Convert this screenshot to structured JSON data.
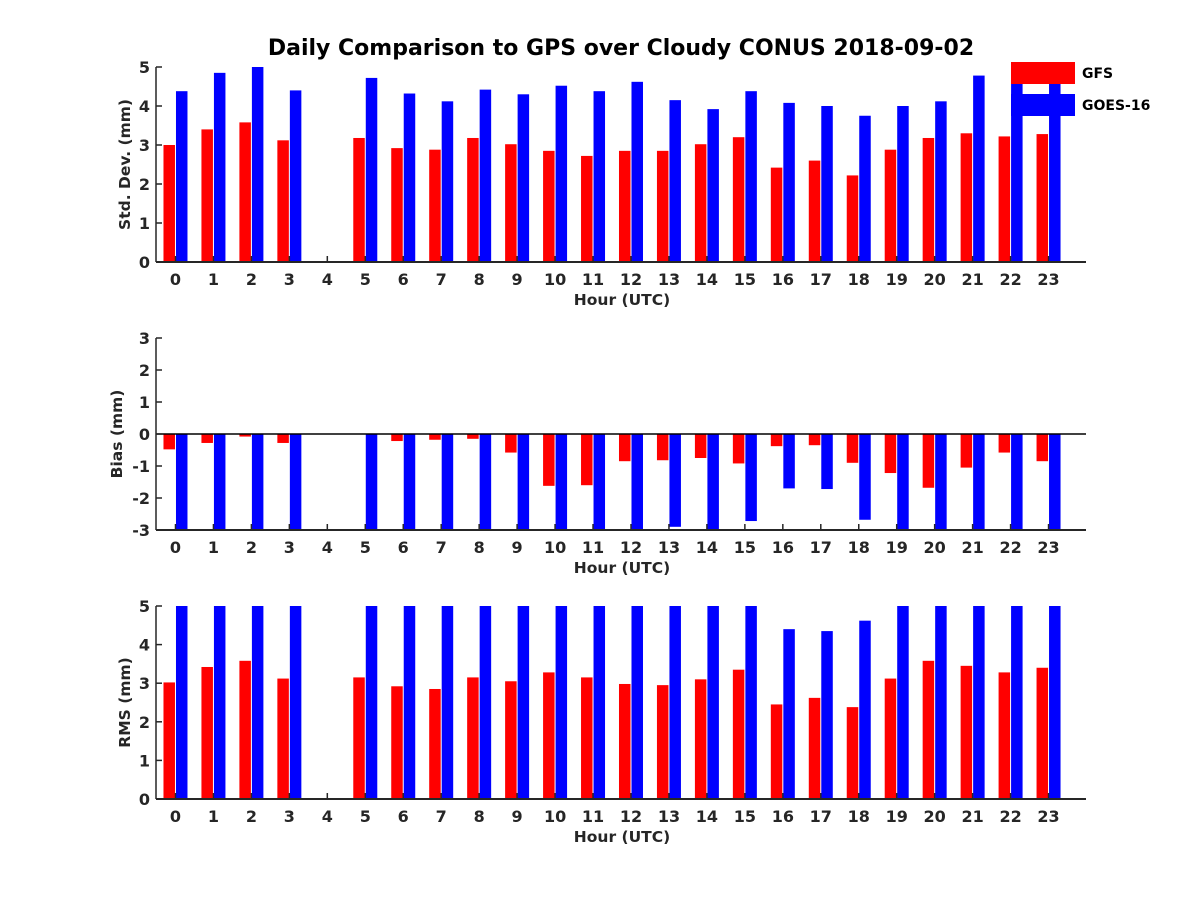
{
  "chart_data": {
    "title": "Daily Comparison to GPS over Cloudy CONUS 2018-09-02",
    "legend": {
      "placement": "top-right",
      "entries": [
        {
          "name": "GFS",
          "color": "#ff0000"
        },
        {
          "name": "GOES-16",
          "color": "#0000ff"
        }
      ]
    },
    "charts": [
      {
        "type": "bar",
        "xlabel": "Hour (UTC)",
        "ylabel": "Std. Dev. (mm)",
        "ylim": [
          0,
          5
        ],
        "yticks": [
          0,
          1,
          2,
          3,
          4,
          5
        ],
        "categories": [
          "0",
          "1",
          "2",
          "3",
          "4",
          "5",
          "6",
          "7",
          "8",
          "9",
          "10",
          "11",
          "12",
          "13",
          "14",
          "15",
          "16",
          "17",
          "18",
          "19",
          "20",
          "21",
          "22",
          "23"
        ],
        "series": [
          {
            "name": "GFS",
            "color": "#ff0000",
            "values": [
              3.0,
              3.4,
              3.58,
              3.12,
              null,
              3.18,
              2.92,
              2.88,
              3.18,
              3.02,
              2.85,
              2.72,
              2.85,
              2.85,
              3.02,
              3.2,
              2.42,
              2.6,
              2.22,
              2.88,
              3.18,
              3.3,
              3.22,
              3.28
            ]
          },
          {
            "name": "GOES-16",
            "color": "#0000ff",
            "values": [
              4.38,
              4.85,
              5.0,
              4.4,
              null,
              4.72,
              4.32,
              4.12,
              4.42,
              4.3,
              4.52,
              4.38,
              4.62,
              4.15,
              3.92,
              4.38,
              4.08,
              4.0,
              3.75,
              4.0,
              4.12,
              4.78,
              4.95,
              4.75
            ]
          }
        ]
      },
      {
        "type": "bar",
        "xlabel": "Hour (UTC)",
        "ylabel": "Bias (mm)",
        "ylim": [
          -3,
          3
        ],
        "yticks": [
          -3,
          -2,
          -1,
          0,
          1,
          2,
          3
        ],
        "zero_line": true,
        "categories": [
          "0",
          "1",
          "2",
          "3",
          "4",
          "5",
          "6",
          "7",
          "8",
          "9",
          "10",
          "11",
          "12",
          "13",
          "14",
          "15",
          "16",
          "17",
          "18",
          "19",
          "20",
          "21",
          "22",
          "23"
        ],
        "series": [
          {
            "name": "GFS",
            "color": "#ff0000",
            "values": [
              -0.48,
              -0.28,
              -0.08,
              -0.28,
              null,
              0.0,
              -0.22,
              -0.18,
              -0.15,
              -0.58,
              -1.62,
              -1.6,
              -0.85,
              -0.82,
              -0.75,
              -0.92,
              -0.38,
              -0.35,
              -0.9,
              -1.22,
              -1.68,
              -1.05,
              -0.58,
              -0.85
            ]
          },
          {
            "name": "GOES-16",
            "color": "#0000ff",
            "values": [
              -3.0,
              -3.0,
              -3.0,
              -3.0,
              null,
              -3.0,
              -3.0,
              -3.0,
              -3.0,
              -3.0,
              -3.0,
              -3.0,
              -3.0,
              -2.9,
              -3.0,
              -2.72,
              -1.7,
              -1.72,
              -2.68,
              -3.0,
              -3.0,
              -3.0,
              -3.0,
              -3.0
            ]
          }
        ]
      },
      {
        "type": "bar",
        "xlabel": "Hour (UTC)",
        "ylabel": "RMS (mm)",
        "ylim": [
          0,
          5
        ],
        "yticks": [
          0,
          1,
          2,
          3,
          4,
          5
        ],
        "categories": [
          "0",
          "1",
          "2",
          "3",
          "4",
          "5",
          "6",
          "7",
          "8",
          "9",
          "10",
          "11",
          "12",
          "13",
          "14",
          "15",
          "16",
          "17",
          "18",
          "19",
          "20",
          "21",
          "22",
          "23"
        ],
        "series": [
          {
            "name": "GFS",
            "color": "#ff0000",
            "values": [
              3.02,
              3.42,
              3.58,
              3.12,
              null,
              3.15,
              2.92,
              2.85,
              3.15,
              3.05,
              3.28,
              3.15,
              2.98,
              2.95,
              3.1,
              3.35,
              2.45,
              2.62,
              2.38,
              3.12,
              3.58,
              3.45,
              3.28,
              3.4
            ]
          },
          {
            "name": "GOES-16",
            "color": "#0000ff",
            "values": [
              5.0,
              5.0,
              5.0,
              5.0,
              null,
              5.0,
              5.0,
              5.0,
              5.0,
              5.0,
              5.0,
              5.0,
              5.0,
              5.0,
              5.0,
              5.0,
              4.4,
              4.35,
              4.62,
              5.0,
              5.0,
              5.0,
              5.0,
              5.0
            ]
          }
        ]
      }
    ]
  }
}
